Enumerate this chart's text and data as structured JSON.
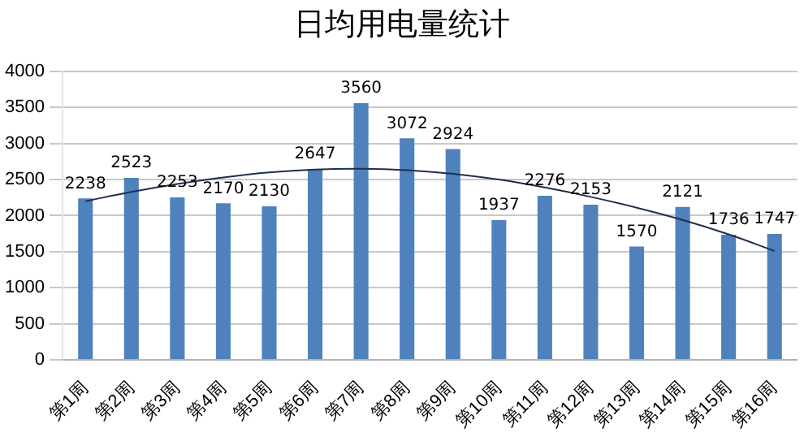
{
  "chart_data": {
    "type": "bar",
    "title": "日均用电量统计",
    "categories": [
      "第1周",
      "第2周",
      "第3周",
      "第4周",
      "第5周",
      "第6周",
      "第7周",
      "第8周",
      "第9周",
      "第10周",
      "第11周",
      "第12周",
      "第13周",
      "第14周",
      "第15周",
      "第16周"
    ],
    "series": [
      {
        "color": "#4f81bd",
        "values": [
          2238,
          2523,
          2253,
          2170,
          2130,
          2647,
          3560,
          3072,
          2924,
          1937,
          2276,
          2153,
          1570,
          2121,
          1736,
          1747
        ],
        "value_labels": [
          "2238",
          "2523",
          "2253",
          "2170",
          "2130",
          "2647",
          "3560",
          "3072",
          "2924",
          "1937",
          "2276",
          "2153",
          "1570",
          "2121",
          "1736",
          "1747"
        ]
      },
      {
        "type": "line",
        "color": "#1f2f4f",
        "values": [
          2200,
          2330,
          2440,
          2530,
          2600,
          2640,
          2650,
          2630,
          2580,
          2500,
          2390,
          2260,
          2110,
          1940,
          1740,
          1510
        ]
      }
    ],
    "ylim": [
      0,
      4000
    ],
    "yticks": [
      0,
      500,
      1000,
      1500,
      2000,
      2500,
      3000,
      3500,
      4000
    ],
    "grid": "y",
    "legend": false,
    "marker": "none"
  }
}
